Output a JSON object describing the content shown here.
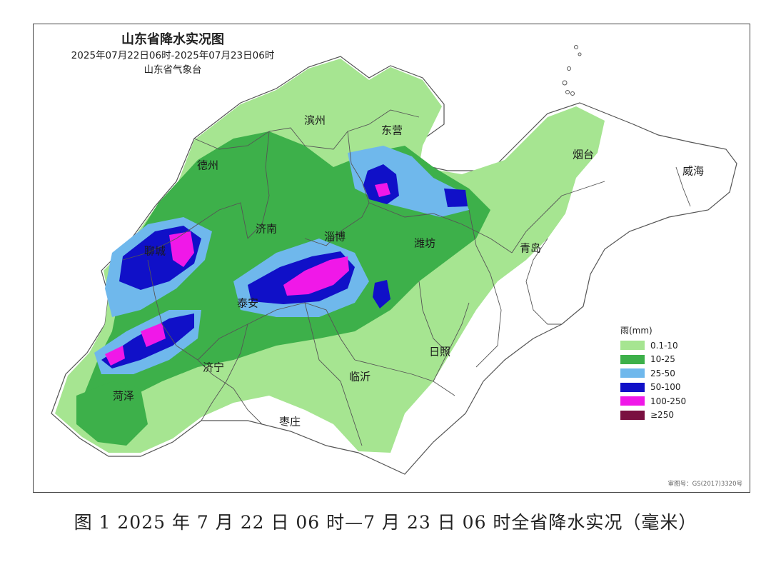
{
  "map": {
    "title": "山东省降水实况图",
    "period": "2025年07月22日06时-2025年07月23日06时",
    "agency": "山东省气象台",
    "approval": "审图号：GS(2017)3320号"
  },
  "cities": [
    {
      "name": "滨州"
    },
    {
      "name": "东营"
    },
    {
      "name": "德州"
    },
    {
      "name": "烟台"
    },
    {
      "name": "威海"
    },
    {
      "name": "济南"
    },
    {
      "name": "淄博"
    },
    {
      "name": "潍坊"
    },
    {
      "name": "青岛"
    },
    {
      "name": "聊城"
    },
    {
      "name": "泰安"
    },
    {
      "name": "日照"
    },
    {
      "name": "济宁"
    },
    {
      "name": "临沂"
    },
    {
      "name": "菏泽"
    },
    {
      "name": "枣庄"
    }
  ],
  "legend": {
    "title": "雨(mm)",
    "items": [
      {
        "label": "0.1-10",
        "color": "#a6e591"
      },
      {
        "label": "10-25",
        "color": "#3db04a"
      },
      {
        "label": "25-50",
        "color": "#6fb8ec"
      },
      {
        "label": "50-100",
        "color": "#1010c8"
      },
      {
        "label": "100-250",
        "color": "#f018e8"
      },
      {
        "label": "≥250",
        "color": "#7a1040"
      }
    ]
  },
  "caption": "图 1 2025 年 7 月 22 日 06 时—7 月 23 日 06 时全省降水实况（毫米）"
}
